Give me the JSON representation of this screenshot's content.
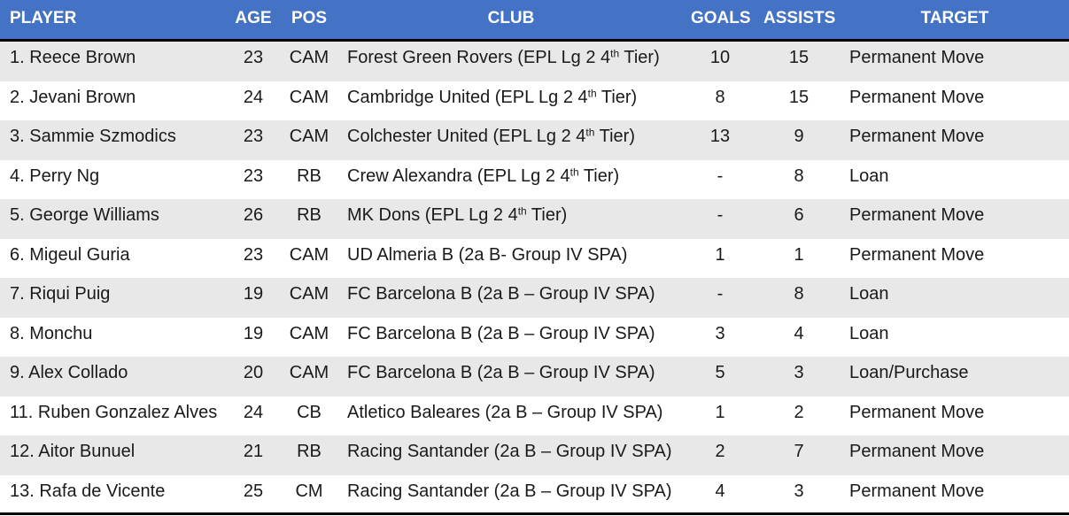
{
  "headers": {
    "player": "PLAYER",
    "age": "AGE",
    "pos": "POS",
    "club": "CLUB",
    "goals": "GOALS",
    "assists": "ASSISTS",
    "target": "TARGET"
  },
  "colors": {
    "header_bg": "#4472c4",
    "header_text": "#ffffff",
    "row_shade": "#e8e8e8",
    "rule": "#000000"
  },
  "rows": [
    {
      "player": "1. Reece Brown",
      "age": "23",
      "pos": "CAM",
      "club": "Forest Green Rovers (EPL Lg 2 4",
      "club_sup": "th",
      "club_tail": " Tier)",
      "goals": "10",
      "assists": "15",
      "target": "Permanent Move"
    },
    {
      "player": "2. Jevani Brown",
      "age": "24",
      "pos": "CAM",
      "club": "Cambridge United (EPL Lg 2 4",
      "club_sup": "th",
      "club_tail": " Tier)",
      "goals": "8",
      "assists": "15",
      "target": "Permanent Move"
    },
    {
      "player": "3. Sammie Szmodics",
      "age": "23",
      "pos": "CAM",
      "club": "Colchester United (EPL Lg 2 4",
      "club_sup": "th",
      "club_tail": " Tier)",
      "goals": "13",
      "assists": "9",
      "target": "Permanent Move"
    },
    {
      "player": "4. Perry Ng",
      "age": "23",
      "pos": "RB",
      "club": "Crew Alexandra (EPL Lg 2 4",
      "club_sup": "th",
      "club_tail": " Tier)",
      "goals": "-",
      "assists": "8",
      "target": "Loan"
    },
    {
      "player": "5. George Williams",
      "age": "26",
      "pos": "RB",
      "club": "MK Dons (EPL Lg 2 4",
      "club_sup": "th",
      "club_tail": " Tier)",
      "goals": "-",
      "assists": "6",
      "target": "Permanent Move"
    },
    {
      "player": "6. Migeul Guria",
      "age": "23",
      "pos": "CAM",
      "club": "UD Almeria B (2a B- Group IV SPA)",
      "club_sup": "",
      "club_tail": "",
      "goals": "1",
      "assists": "1",
      "target": "Permanent Move"
    },
    {
      "player": "7. Riqui Puig",
      "age": "19",
      "pos": "CAM",
      "club": "FC Barcelona B (2a B – Group IV SPA)",
      "club_sup": "",
      "club_tail": "",
      "goals": "-",
      "assists": "8",
      "target": "Loan"
    },
    {
      "player": "8. Monchu",
      "age": "19",
      "pos": "CAM",
      "club": "FC Barcelona B (2a B – Group IV SPA)",
      "club_sup": "",
      "club_tail": "",
      "goals": "3",
      "assists": "4",
      "target": "Loan"
    },
    {
      "player": "9. Alex Collado",
      "age": "20",
      "pos": "CAM",
      "club": "FC Barcelona B (2a B – Group IV SPA)",
      "club_sup": "",
      "club_tail": "",
      "goals": "5",
      "assists": "3",
      "target": "Loan/Purchase"
    },
    {
      "player": "11. Ruben Gonzalez Alves",
      "age": "24",
      "pos": "CB",
      "club": "Atletico Baleares (2a B – Group IV SPA)",
      "club_sup": "",
      "club_tail": "",
      "goals": "1",
      "assists": "2",
      "target": "Permanent Move"
    },
    {
      "player": "12. Aitor Bunuel",
      "age": "21",
      "pos": "RB",
      "club": "Racing Santander (2a B – Group IV SPA)",
      "club_sup": "",
      "club_tail": "",
      "goals": "2",
      "assists": "7",
      "target": "Permanent Move"
    },
    {
      "player": "13. Rafa de Vicente",
      "age": "25",
      "pos": "CM",
      "club": "Racing Santander (2a B – Group IV SPA)",
      "club_sup": "",
      "club_tail": "",
      "goals": "4",
      "assists": "3",
      "target": "Permanent Move"
    }
  ]
}
